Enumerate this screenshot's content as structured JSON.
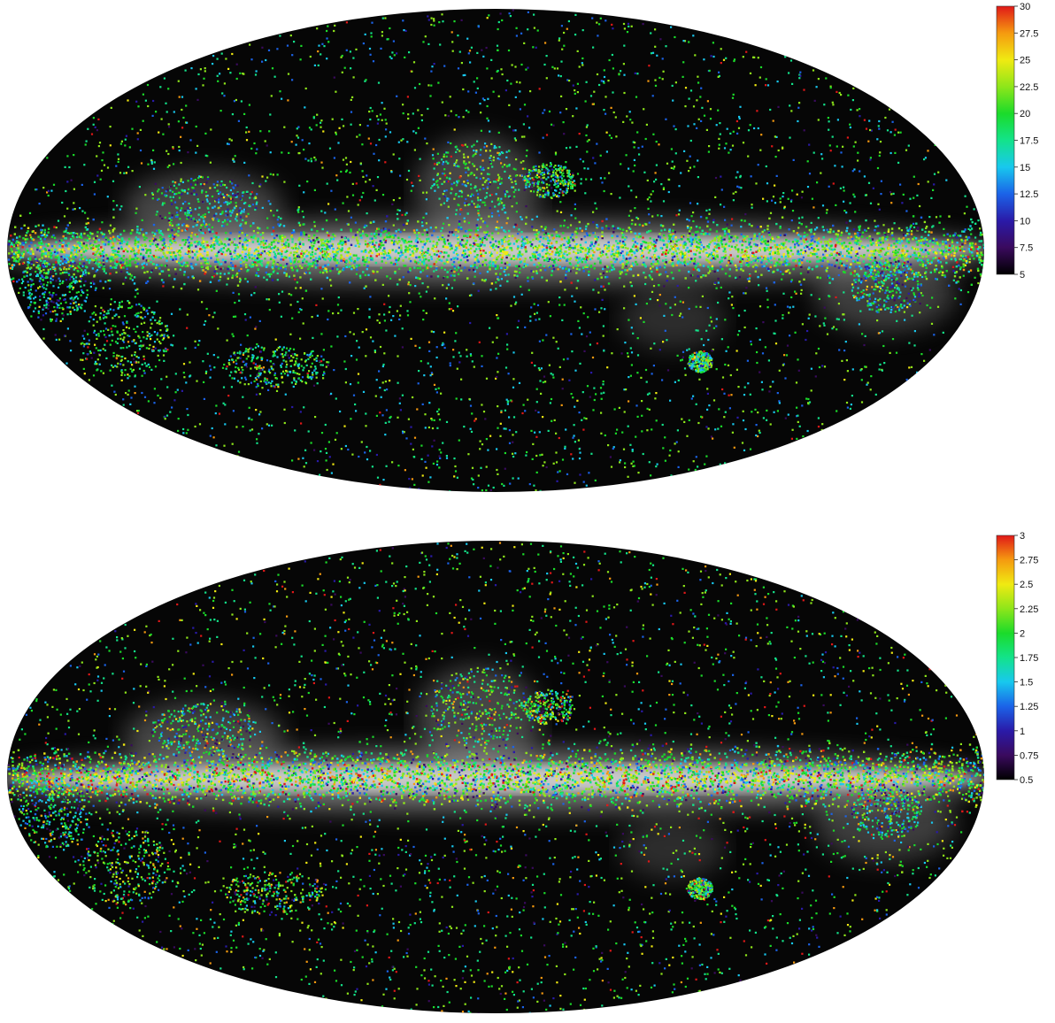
{
  "maps": [
    {
      "name": "top",
      "colorbar": {
        "min": 5,
        "max": 30,
        "tick_labels": [
          "30",
          "27.5",
          "25",
          "22.5",
          "20",
          "17.5",
          "15",
          "12.5",
          "10",
          "7.5",
          "5"
        ],
        "colormap": [
          "#000000",
          "#3a0a5e",
          "#2a1aa8",
          "#1b63e8",
          "#18c8ee",
          "#13e38a",
          "#1bdb2a",
          "#8ee61a",
          "#f0ea12",
          "#f59a10",
          "#e01818"
        ]
      }
    },
    {
      "name": "bottom",
      "colorbar": {
        "min": 0.5,
        "max": 3,
        "tick_labels": [
          "3",
          "2.75",
          "2.5",
          "2.25",
          "2",
          "1.75",
          "1.5",
          "1.25",
          "1",
          "0.75",
          "0.5"
        ],
        "colormap": [
          "#000000",
          "#3a0a5e",
          "#2a1aa8",
          "#1b63e8",
          "#18c8ee",
          "#13e38a",
          "#1bdb2a",
          "#8ee61a",
          "#f0ea12",
          "#f59a10",
          "#e01818"
        ]
      }
    }
  ]
}
